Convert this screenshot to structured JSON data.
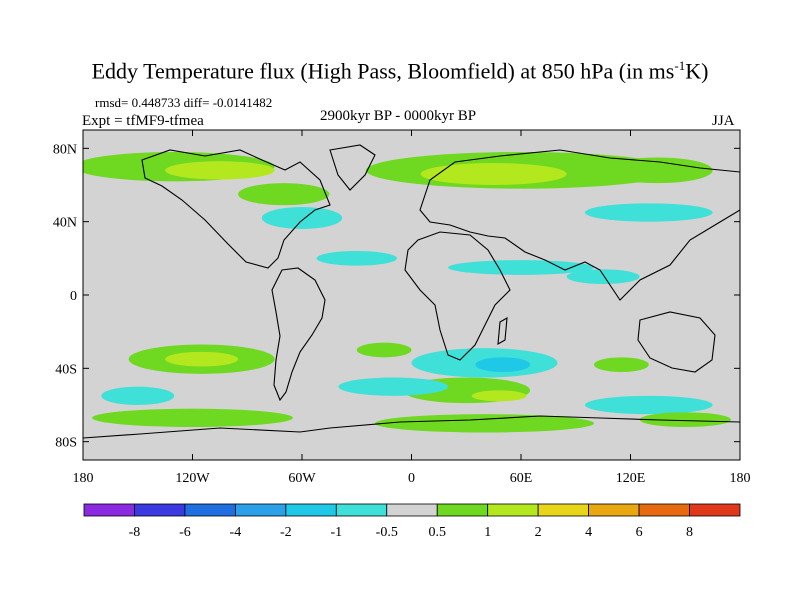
{
  "chart_data": {
    "type": "contour-map",
    "title": "Eddy Temperature flux (High Pass, Bloomfield) at 850 hPa (in ms",
    "title_unit_exponent": "-1",
    "title_unit_suffix": "K)",
    "stats_line": "rmsd= 0.448733 diff= -0.0141482",
    "experiment": "Expt = tfMF9-tfmea",
    "period": "2900kyr BP - 0000kyr BP",
    "season": "JJA",
    "xlim": [
      -180,
      180
    ],
    "ylim": [
      -90,
      90
    ],
    "x_ticks": [
      {
        "value": -180,
        "label": "180"
      },
      {
        "value": -120,
        "label": "120W"
      },
      {
        "value": -60,
        "label": "60W"
      },
      {
        "value": 0,
        "label": "0"
      },
      {
        "value": 60,
        "label": "60E"
      },
      {
        "value": 120,
        "label": "120E"
      },
      {
        "value": 180,
        "label": "180"
      }
    ],
    "y_ticks": [
      {
        "value": 80,
        "label": "80N"
      },
      {
        "value": 40,
        "label": "40N"
      },
      {
        "value": 0,
        "label": "0"
      },
      {
        "value": -40,
        "label": "40S"
      },
      {
        "value": -80,
        "label": "80S"
      }
    ],
    "colorbar": {
      "colors": [
        "#8a2be2",
        "#3a3ae0",
        "#1f6fe0",
        "#2aa0e8",
        "#1ec8e6",
        "#3fe0d8",
        "#d3d3d3",
        "#6fd820",
        "#b4e81e",
        "#e8d418",
        "#e8a812",
        "#e86a10",
        "#e0381a"
      ],
      "labels": [
        "-8",
        "-6",
        "-4",
        "-2",
        "-1",
        "-0.5",
        "0.5",
        "1",
        "2",
        "4",
        "6",
        "8"
      ]
    },
    "regions": [
      {
        "level": 1,
        "lon": -130,
        "lat": 70,
        "rx": 55,
        "ry": 8
      },
      {
        "level": 2,
        "lon": -105,
        "lat": 68,
        "rx": 30,
        "ry": 5
      },
      {
        "level": 1,
        "lon": 60,
        "lat": 68,
        "rx": 85,
        "ry": 10
      },
      {
        "level": 2,
        "lon": 45,
        "lat": 66,
        "rx": 40,
        "ry": 6
      },
      {
        "level": 1,
        "lon": 135,
        "lat": 68,
        "rx": 30,
        "ry": 7
      },
      {
        "level": 1,
        "lon": -70,
        "lat": 55,
        "rx": 25,
        "ry": 6
      },
      {
        "level": -1,
        "lon": -60,
        "lat": 42,
        "rx": 22,
        "ry": 6
      },
      {
        "level": -1,
        "lon": 130,
        "lat": 45,
        "rx": 35,
        "ry": 5
      },
      {
        "level": -1,
        "lon": -30,
        "lat": 20,
        "rx": 22,
        "ry": 4
      },
      {
        "level": -1,
        "lon": 60,
        "lat": 15,
        "rx": 40,
        "ry": 4
      },
      {
        "level": -1,
        "lon": 105,
        "lat": 10,
        "rx": 20,
        "ry": 4
      },
      {
        "level": 1,
        "lon": -115,
        "lat": -35,
        "rx": 40,
        "ry": 8
      },
      {
        "level": 2,
        "lon": -115,
        "lat": -35,
        "rx": 20,
        "ry": 4
      },
      {
        "level": 1,
        "lon": -15,
        "lat": -30,
        "rx": 15,
        "ry": 4
      },
      {
        "level": -1,
        "lon": 40,
        "lat": -37,
        "rx": 40,
        "ry": 8
      },
      {
        "level": -2,
        "lon": 50,
        "lat": -38,
        "rx": 15,
        "ry": 4
      },
      {
        "level": 1,
        "lon": 115,
        "lat": -38,
        "rx": 15,
        "ry": 4
      },
      {
        "level": 1,
        "lon": 30,
        "lat": -52,
        "rx": 35,
        "ry": 7
      },
      {
        "level": 2,
        "lon": 48,
        "lat": -55,
        "rx": 15,
        "ry": 3
      },
      {
        "level": -1,
        "lon": -10,
        "lat": -50,
        "rx": 30,
        "ry": 5
      },
      {
        "level": -1,
        "lon": -150,
        "lat": -55,
        "rx": 20,
        "ry": 5
      },
      {
        "level": -1,
        "lon": 130,
        "lat": -60,
        "rx": 35,
        "ry": 5
      },
      {
        "level": 1,
        "lon": -120,
        "lat": -67,
        "rx": 55,
        "ry": 5
      },
      {
        "level": 1,
        "lon": 40,
        "lat": -70,
        "rx": 60,
        "ry": 5
      },
      {
        "level": 1,
        "lon": 150,
        "lat": -68,
        "rx": 25,
        "ry": 4
      }
    ]
  }
}
